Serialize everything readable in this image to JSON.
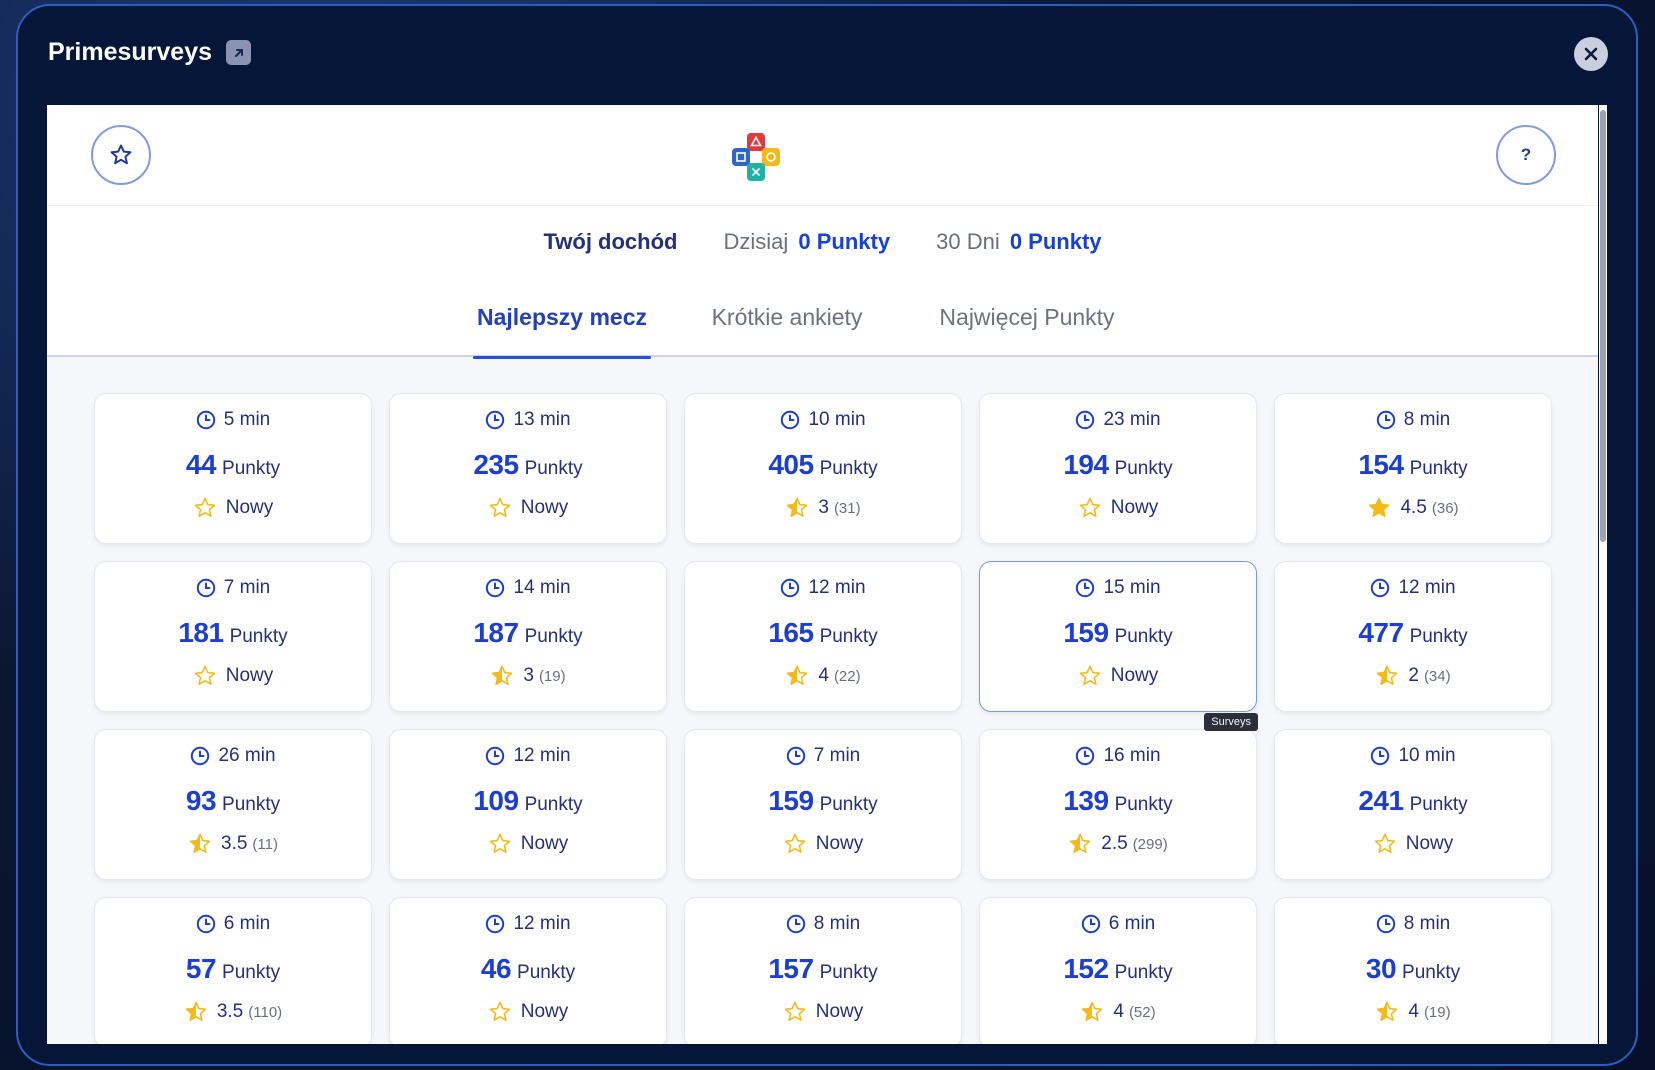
{
  "modal": {
    "title": "Primesurveys"
  },
  "help": {
    "label": "?"
  },
  "income": {
    "title": "Twój dochód",
    "today_label": "Dzisiaj",
    "today_value": "0 Punkty",
    "month_label": "30 Dni",
    "month_value": "0 Punkty"
  },
  "tabs": [
    {
      "label": "Najlepszy mecz",
      "active": true
    },
    {
      "label": "Krótkie ankiety",
      "active": false
    },
    {
      "label": "Najwięcej Punkty",
      "active": false
    }
  ],
  "colors": {
    "accent": "#1c3fcf",
    "navy": "#061638",
    "star": "#f5b919"
  },
  "points_unit": "Punkty",
  "tooltip": "Surveys",
  "surveys": [
    {
      "time": "5 min",
      "points": "44",
      "rating_text": "Nowy",
      "rating_value": 0,
      "count": ""
    },
    {
      "time": "13 min",
      "points": "235",
      "rating_text": "Nowy",
      "rating_value": 0,
      "count": ""
    },
    {
      "time": "10 min",
      "points": "405",
      "rating_text": "3",
      "rating_value": 3,
      "count": "(31)"
    },
    {
      "time": "23 min",
      "points": "194",
      "rating_text": "Nowy",
      "rating_value": 0,
      "count": ""
    },
    {
      "time": "8 min",
      "points": "154",
      "rating_text": "4.5",
      "rating_value": 4.5,
      "count": "(36)"
    },
    {
      "time": "7 min",
      "points": "181",
      "rating_text": "Nowy",
      "rating_value": 0,
      "count": ""
    },
    {
      "time": "14 min",
      "points": "187",
      "rating_text": "3",
      "rating_value": 3,
      "count": "(19)"
    },
    {
      "time": "12 min",
      "points": "165",
      "rating_text": "4",
      "rating_value": 4,
      "count": "(22)"
    },
    {
      "time": "15 min",
      "points": "159",
      "rating_text": "Nowy",
      "rating_value": 0,
      "count": "",
      "hovered": true
    },
    {
      "time": "12 min",
      "points": "477",
      "rating_text": "2",
      "rating_value": 2,
      "count": "(34)"
    },
    {
      "time": "26 min",
      "points": "93",
      "rating_text": "3.5",
      "rating_value": 3.5,
      "count": "(11)"
    },
    {
      "time": "12 min",
      "points": "109",
      "rating_text": "Nowy",
      "rating_value": 0,
      "count": ""
    },
    {
      "time": "7 min",
      "points": "159",
      "rating_text": "Nowy",
      "rating_value": 0,
      "count": ""
    },
    {
      "time": "16 min",
      "points": "139",
      "rating_text": "2.5",
      "rating_value": 2.5,
      "count": "(299)"
    },
    {
      "time": "10 min",
      "points": "241",
      "rating_text": "Nowy",
      "rating_value": 0,
      "count": ""
    },
    {
      "time": "6 min",
      "points": "57",
      "rating_text": "3.5",
      "rating_value": 3.5,
      "count": "(110)"
    },
    {
      "time": "12 min",
      "points": "46",
      "rating_text": "Nowy",
      "rating_value": 0,
      "count": ""
    },
    {
      "time": "8 min",
      "points": "157",
      "rating_text": "Nowy",
      "rating_value": 0,
      "count": ""
    },
    {
      "time": "6 min",
      "points": "152",
      "rating_text": "4",
      "rating_value": 4,
      "count": "(52)"
    },
    {
      "time": "8 min",
      "points": "30",
      "rating_text": "4",
      "rating_value": 4,
      "count": "(19)"
    }
  ]
}
